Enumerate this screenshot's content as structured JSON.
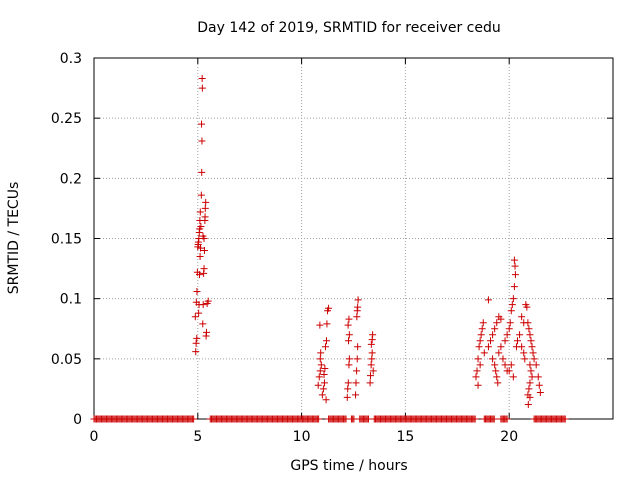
{
  "chart_data": {
    "type": "scatter",
    "title": "Day 142 of 2019, SRMTID for receiver cedu",
    "xlabel": "GPS time / hours",
    "ylabel": "SRMTID / TECUs",
    "xlim": [
      0,
      25
    ],
    "ylim": [
      0,
      0.3
    ],
    "xticks": [
      0,
      5,
      10,
      15,
      20
    ],
    "yticks": [
      0,
      0.05,
      0.1,
      0.15,
      0.2,
      0.25,
      0.3
    ],
    "xtick_labels": [
      "0",
      "5",
      "10",
      "15",
      "20"
    ],
    "ytick_labels": [
      "0",
      "0.05",
      "0.1",
      "0.15",
      "0.2",
      "0.25",
      "0.3"
    ],
    "grid": true,
    "marker": "+",
    "color": "#cc0000",
    "series": [
      {
        "name": "SRMTID",
        "points": [
          [
            4.9,
            0.056
          ],
          [
            4.92,
            0.063
          ],
          [
            4.95,
            0.067
          ],
          [
            4.88,
            0.085
          ],
          [
            4.93,
            0.097
          ],
          [
            4.96,
            0.106
          ],
          [
            4.98,
            0.122
          ],
          [
            5.0,
            0.143
          ],
          [
            5.02,
            0.145
          ],
          [
            5.03,
            0.147
          ],
          [
            5.05,
            0.15
          ],
          [
            5.07,
            0.155
          ],
          [
            5.09,
            0.158
          ],
          [
            5.1,
            0.165
          ],
          [
            5.12,
            0.172
          ],
          [
            5.04,
            0.088
          ],
          [
            5.06,
            0.095
          ],
          [
            5.08,
            0.12
          ],
          [
            5.11,
            0.135
          ],
          [
            5.13,
            0.142
          ],
          [
            5.15,
            0.16
          ],
          [
            5.17,
            0.186
          ],
          [
            5.19,
            0.205
          ],
          [
            5.2,
            0.231
          ],
          [
            5.18,
            0.245
          ],
          [
            5.22,
            0.275
          ],
          [
            5.21,
            0.283
          ],
          [
            5.24,
            0.079
          ],
          [
            5.26,
            0.095
          ],
          [
            5.28,
            0.121
          ],
          [
            5.3,
            0.125
          ],
          [
            5.32,
            0.14
          ],
          [
            5.34,
            0.165
          ],
          [
            5.36,
            0.175
          ],
          [
            5.38,
            0.18
          ],
          [
            5.35,
            0.168
          ],
          [
            5.4,
            0.069
          ],
          [
            5.42,
            0.072
          ],
          [
            5.45,
            0.096
          ],
          [
            5.5,
            0.098
          ],
          [
            5.25,
            0.152
          ],
          [
            5.3,
            0.15
          ],
          [
            10.8,
            0.028
          ],
          [
            10.85,
            0.035
          ],
          [
            10.9,
            0.04
          ],
          [
            10.95,
            0.045
          ],
          [
            10.9,
            0.05
          ],
          [
            10.92,
            0.055
          ],
          [
            10.88,
            0.078
          ],
          [
            11.0,
            0.02
          ],
          [
            11.05,
            0.025
          ],
          [
            11.1,
            0.03
          ],
          [
            11.08,
            0.037
          ],
          [
            11.12,
            0.042
          ],
          [
            11.15,
            0.06
          ],
          [
            11.2,
            0.065
          ],
          [
            11.22,
            0.079
          ],
          [
            11.25,
            0.09
          ],
          [
            11.3,
            0.092
          ],
          [
            11.18,
            0.016
          ],
          [
            12.2,
            0.018
          ],
          [
            12.22,
            0.025
          ],
          [
            12.25,
            0.03
          ],
          [
            12.28,
            0.045
          ],
          [
            12.3,
            0.05
          ],
          [
            12.26,
            0.065
          ],
          [
            12.3,
            0.07
          ],
          [
            12.24,
            0.078
          ],
          [
            12.28,
            0.083
          ],
          [
            12.6,
            0.02
          ],
          [
            12.62,
            0.03
          ],
          [
            12.65,
            0.04
          ],
          [
            12.68,
            0.05
          ],
          [
            12.7,
            0.06
          ],
          [
            12.66,
            0.085
          ],
          [
            12.68,
            0.09
          ],
          [
            12.7,
            0.093
          ],
          [
            12.72,
            0.099
          ],
          [
            13.3,
            0.03
          ],
          [
            13.32,
            0.036
          ],
          [
            13.35,
            0.045
          ],
          [
            13.38,
            0.05
          ],
          [
            13.4,
            0.055
          ],
          [
            13.36,
            0.062
          ],
          [
            13.4,
            0.066
          ],
          [
            13.42,
            0.07
          ],
          [
            13.45,
            0.04
          ],
          [
            18.4,
            0.035
          ],
          [
            18.45,
            0.04
          ],
          [
            18.5,
            0.05
          ],
          [
            18.55,
            0.06
          ],
          [
            18.6,
            0.065
          ],
          [
            18.65,
            0.07
          ],
          [
            18.7,
            0.075
          ],
          [
            18.75,
            0.08
          ],
          [
            18.5,
            0.028
          ],
          [
            18.6,
            0.045
          ],
          [
            18.8,
            0.055
          ],
          [
            19.0,
            0.06
          ],
          [
            19.1,
            0.065
          ],
          [
            19.2,
            0.07
          ],
          [
            19.3,
            0.075
          ],
          [
            19.4,
            0.08
          ],
          [
            19.5,
            0.085
          ],
          [
            19.2,
            0.05
          ],
          [
            19.3,
            0.045
          ],
          [
            19.35,
            0.04
          ],
          [
            19.4,
            0.035
          ],
          [
            19.45,
            0.03
          ],
          [
            19.5,
            0.055
          ],
          [
            19.6,
            0.06
          ],
          [
            19.0,
            0.099
          ],
          [
            19.7,
            0.05
          ],
          [
            19.8,
            0.065
          ],
          [
            19.9,
            0.07
          ],
          [
            20.0,
            0.075
          ],
          [
            20.05,
            0.08
          ],
          [
            20.1,
            0.09
          ],
          [
            20.15,
            0.095
          ],
          [
            20.2,
            0.1
          ],
          [
            20.25,
            0.11
          ],
          [
            20.3,
            0.12
          ],
          [
            20.28,
            0.127
          ],
          [
            20.25,
            0.132
          ],
          [
            20.0,
            0.04
          ],
          [
            20.1,
            0.045
          ],
          [
            20.2,
            0.035
          ],
          [
            20.35,
            0.06
          ],
          [
            20.4,
            0.065
          ],
          [
            20.5,
            0.07
          ],
          [
            20.6,
            0.06
          ],
          [
            20.7,
            0.055
          ],
          [
            20.75,
            0.05
          ],
          [
            20.8,
            0.095
          ],
          [
            20.85,
            0.093
          ],
          [
            20.9,
            0.08
          ],
          [
            20.95,
            0.075
          ],
          [
            21.0,
            0.07
          ],
          [
            21.05,
            0.065
          ],
          [
            21.0,
            0.045
          ],
          [
            21.05,
            0.04
          ],
          [
            21.1,
            0.035
          ],
          [
            21.0,
            0.03
          ],
          [
            20.95,
            0.025
          ],
          [
            20.9,
            0.02
          ],
          [
            20.92,
            0.012
          ],
          [
            21.0,
            0.018
          ],
          [
            21.1,
            0.06
          ],
          [
            21.15,
            0.055
          ],
          [
            21.2,
            0.05
          ],
          [
            21.3,
            0.045
          ],
          [
            21.4,
            0.035
          ],
          [
            21.45,
            0.028
          ],
          [
            21.5,
            0.022
          ],
          [
            20.6,
            0.085
          ],
          [
            20.7,
            0.08
          ],
          [
            19.6,
            0.083
          ],
          [
            19.8,
            0.045
          ],
          [
            19.9,
            0.04
          ]
        ]
      }
    ],
    "zero_ranges": [
      [
        0.0,
        4.85
      ],
      [
        5.6,
        10.85
      ],
      [
        11.3,
        12.15
      ],
      [
        12.4,
        12.55
      ],
      [
        12.8,
        13.25
      ],
      [
        13.5,
        18.4
      ],
      [
        18.8,
        19.3
      ],
      [
        19.6,
        19.9
      ],
      [
        21.2,
        22.75
      ]
    ]
  }
}
